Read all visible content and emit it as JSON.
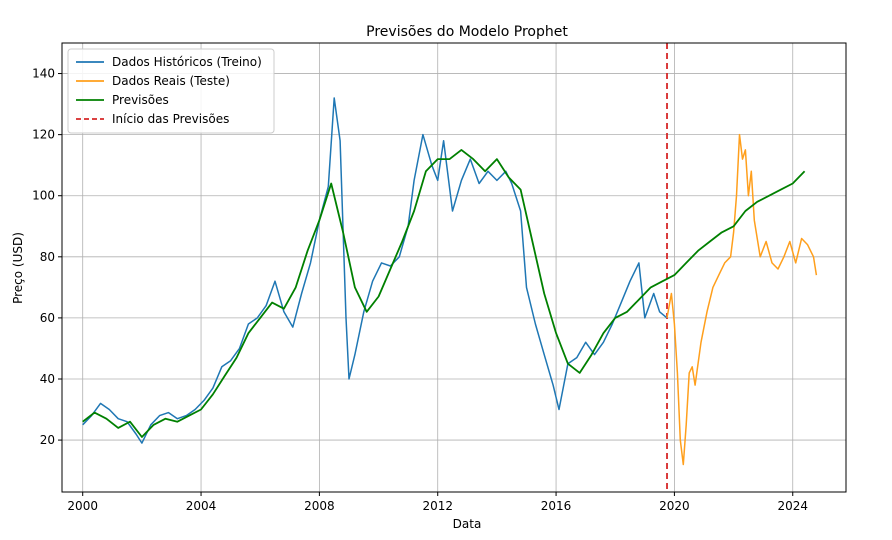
{
  "chart_data": {
    "type": "line",
    "title": "Previsões do Modelo Prophet",
    "xlabel": "Data",
    "ylabel": "Preço (USD)",
    "xlim": [
      1999.3,
      2025.8
    ],
    "ylim": [
      3,
      150
    ],
    "x_ticks": [
      2000,
      2004,
      2008,
      2012,
      2016,
      2020,
      2024
    ],
    "y_ticks": [
      20,
      40,
      60,
      80,
      100,
      120,
      140
    ],
    "grid": true,
    "legend_position": "top-left",
    "vline": {
      "name": "Início das Previsões",
      "x": 2019.75,
      "color": "#d62728",
      "style": "dashed"
    },
    "series": [
      {
        "name": "Dados Históricos (Treino)",
        "color": "#1f77b4",
        "x": [
          2000.0,
          2000.3,
          2000.6,
          2000.9,
          2001.2,
          2001.5,
          2001.8,
          2002.0,
          2002.3,
          2002.6,
          2002.9,
          2003.2,
          2003.5,
          2003.8,
          2004.1,
          2004.4,
          2004.7,
          2005.0,
          2005.3,
          2005.6,
          2005.9,
          2006.2,
          2006.5,
          2006.8,
          2007.1,
          2007.4,
          2007.7,
          2008.0,
          2008.3,
          2008.5,
          2008.7,
          2008.9,
          2009.0,
          2009.2,
          2009.5,
          2009.8,
          2010.1,
          2010.4,
          2010.7,
          2011.0,
          2011.2,
          2011.5,
          2011.8,
          2012.0,
          2012.2,
          2012.5,
          2012.8,
          2013.1,
          2013.4,
          2013.7,
          2014.0,
          2014.3,
          2014.5,
          2014.8,
          2015.0,
          2015.3,
          2015.6,
          2015.9,
          2016.1,
          2016.4,
          2016.7,
          2017.0,
          2017.3,
          2017.6,
          2017.9,
          2018.2,
          2018.5,
          2018.8,
          2019.0,
          2019.3,
          2019.5,
          2019.75
        ],
        "values": [
          25,
          28,
          32,
          30,
          27,
          26,
          22,
          19,
          25,
          28,
          29,
          27,
          28,
          30,
          33,
          37,
          44,
          46,
          50,
          58,
          60,
          64,
          72,
          62,
          57,
          68,
          78,
          92,
          103,
          132,
          118,
          60,
          40,
          48,
          62,
          72,
          78,
          77,
          80,
          90,
          105,
          120,
          110,
          105,
          118,
          95,
          105,
          112,
          104,
          108,
          105,
          108,
          104,
          95,
          70,
          58,
          48,
          38,
          30,
          45,
          47,
          52,
          48,
          52,
          58,
          65,
          72,
          78,
          60,
          68,
          62,
          60
        ]
      },
      {
        "name": "Dados Reais (Teste)",
        "color": "#ff9f1c",
        "x": [
          2019.75,
          2019.9,
          2020.0,
          2020.1,
          2020.2,
          2020.3,
          2020.4,
          2020.5,
          2020.6,
          2020.7,
          2020.9,
          2021.1,
          2021.3,
          2021.5,
          2021.7,
          2021.9,
          2022.0,
          2022.1,
          2022.2,
          2022.3,
          2022.4,
          2022.5,
          2022.6,
          2022.7,
          2022.9,
          2023.1,
          2023.3,
          2023.5,
          2023.7,
          2023.9,
          2024.1,
          2024.3,
          2024.5,
          2024.7,
          2024.8
        ],
        "values": [
          60,
          68,
          58,
          42,
          20,
          12,
          25,
          42,
          44,
          38,
          52,
          62,
          70,
          74,
          78,
          80,
          88,
          100,
          120,
          112,
          115,
          100,
          108,
          92,
          80,
          85,
          78,
          76,
          80,
          85,
          78,
          86,
          84,
          80,
          74
        ]
      },
      {
        "name": "Previsões",
        "color": "#008000",
        "x": [
          2000.0,
          2000.4,
          2000.8,
          2001.2,
          2001.6,
          2002.0,
          2002.4,
          2002.8,
          2003.2,
          2003.6,
          2004.0,
          2004.4,
          2004.8,
          2005.2,
          2005.6,
          2006.0,
          2006.4,
          2006.8,
          2007.2,
          2007.6,
          2008.0,
          2008.4,
          2008.8,
          2009.2,
          2009.6,
          2010.0,
          2010.4,
          2010.8,
          2011.2,
          2011.6,
          2012.0,
          2012.4,
          2012.8,
          2013.2,
          2013.6,
          2014.0,
          2014.4,
          2014.8,
          2015.2,
          2015.6,
          2016.0,
          2016.4,
          2016.8,
          2017.2,
          2017.6,
          2018.0,
          2018.4,
          2018.8,
          2019.2,
          2019.6,
          2020.0,
          2020.4,
          2020.8,
          2021.2,
          2021.6,
          2022.0,
          2022.4,
          2022.8,
          2023.2,
          2023.6,
          2024.0,
          2024.4
        ],
        "values": [
          26,
          29,
          27,
          24,
          26,
          21,
          25,
          27,
          26,
          28,
          30,
          35,
          41,
          47,
          55,
          60,
          65,
          63,
          70,
          82,
          92,
          104,
          88,
          70,
          62,
          67,
          76,
          85,
          95,
          108,
          112,
          112,
          115,
          112,
          108,
          112,
          106,
          102,
          85,
          68,
          55,
          45,
          42,
          48,
          55,
          60,
          62,
          66,
          70,
          72,
          74,
          78,
          82,
          85,
          88,
          90,
          95,
          98,
          100,
          102,
          104,
          108
        ]
      }
    ]
  }
}
